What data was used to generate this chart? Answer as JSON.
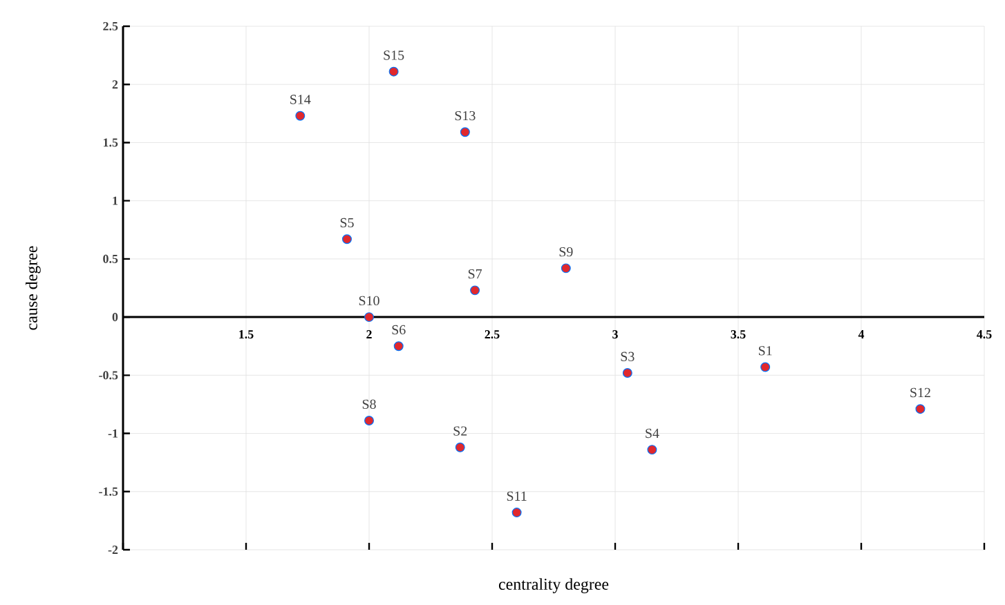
{
  "chart_data": {
    "type": "scatter",
    "xlabel": "centrality degree",
    "ylabel": "cause degree",
    "x": [
      3.61,
      2.37,
      3.05,
      3.15,
      1.91,
      2.12,
      2.43,
      2.0,
      2.8,
      2.0,
      2.6,
      4.24,
      2.39,
      1.72,
      2.1
    ],
    "values": [
      -0.43,
      -1.12,
      -0.48,
      -1.14,
      0.67,
      -0.25,
      0.23,
      -0.89,
      0.42,
      0.0,
      -1.68,
      -0.79,
      1.59,
      1.73,
      2.11
    ],
    "color": "#e0282d",
    "marker": "circle",
    "grid": true,
    "xlim": [
      1,
      4.5
    ],
    "ylim": [
      -2,
      2.5
    ],
    "xticks": [
      {
        "value": 1,
        "label": null
      },
      1.5,
      2,
      2.5,
      3,
      3.5,
      4,
      4.5
    ],
    "yticks": [
      -2,
      -1.5,
      -1,
      -0.5,
      0,
      0.5,
      1,
      1.5,
      2,
      2.5
    ],
    "annotations": [
      {
        "text": "S1",
        "x": 3.61,
        "y": -0.43
      },
      {
        "text": "S2",
        "x": 2.37,
        "y": -1.12
      },
      {
        "text": "S3",
        "x": 3.05,
        "y": -0.48
      },
      {
        "text": "S4",
        "x": 3.15,
        "y": -1.14
      },
      {
        "text": "S5",
        "x": 1.91,
        "y": 0.67
      },
      {
        "text": "S6",
        "x": 2.12,
        "y": -0.25
      },
      {
        "text": "S7",
        "x": 2.43,
        "y": 0.23
      },
      {
        "text": "S8",
        "x": 2.0,
        "y": -0.89
      },
      {
        "text": "S9",
        "x": 2.8,
        "y": 0.42
      },
      {
        "text": "S10",
        "x": 2.0,
        "y": 0.0
      },
      {
        "text": "S11",
        "x": 2.6,
        "y": -1.68
      },
      {
        "text": "S12",
        "x": 4.24,
        "y": -0.79
      },
      {
        "text": "S13",
        "x": 2.39,
        "y": 1.59
      },
      {
        "text": "S14",
        "x": 1.72,
        "y": 1.73
      },
      {
        "text": "S15",
        "x": 2.1,
        "y": 2.11
      }
    ]
  }
}
